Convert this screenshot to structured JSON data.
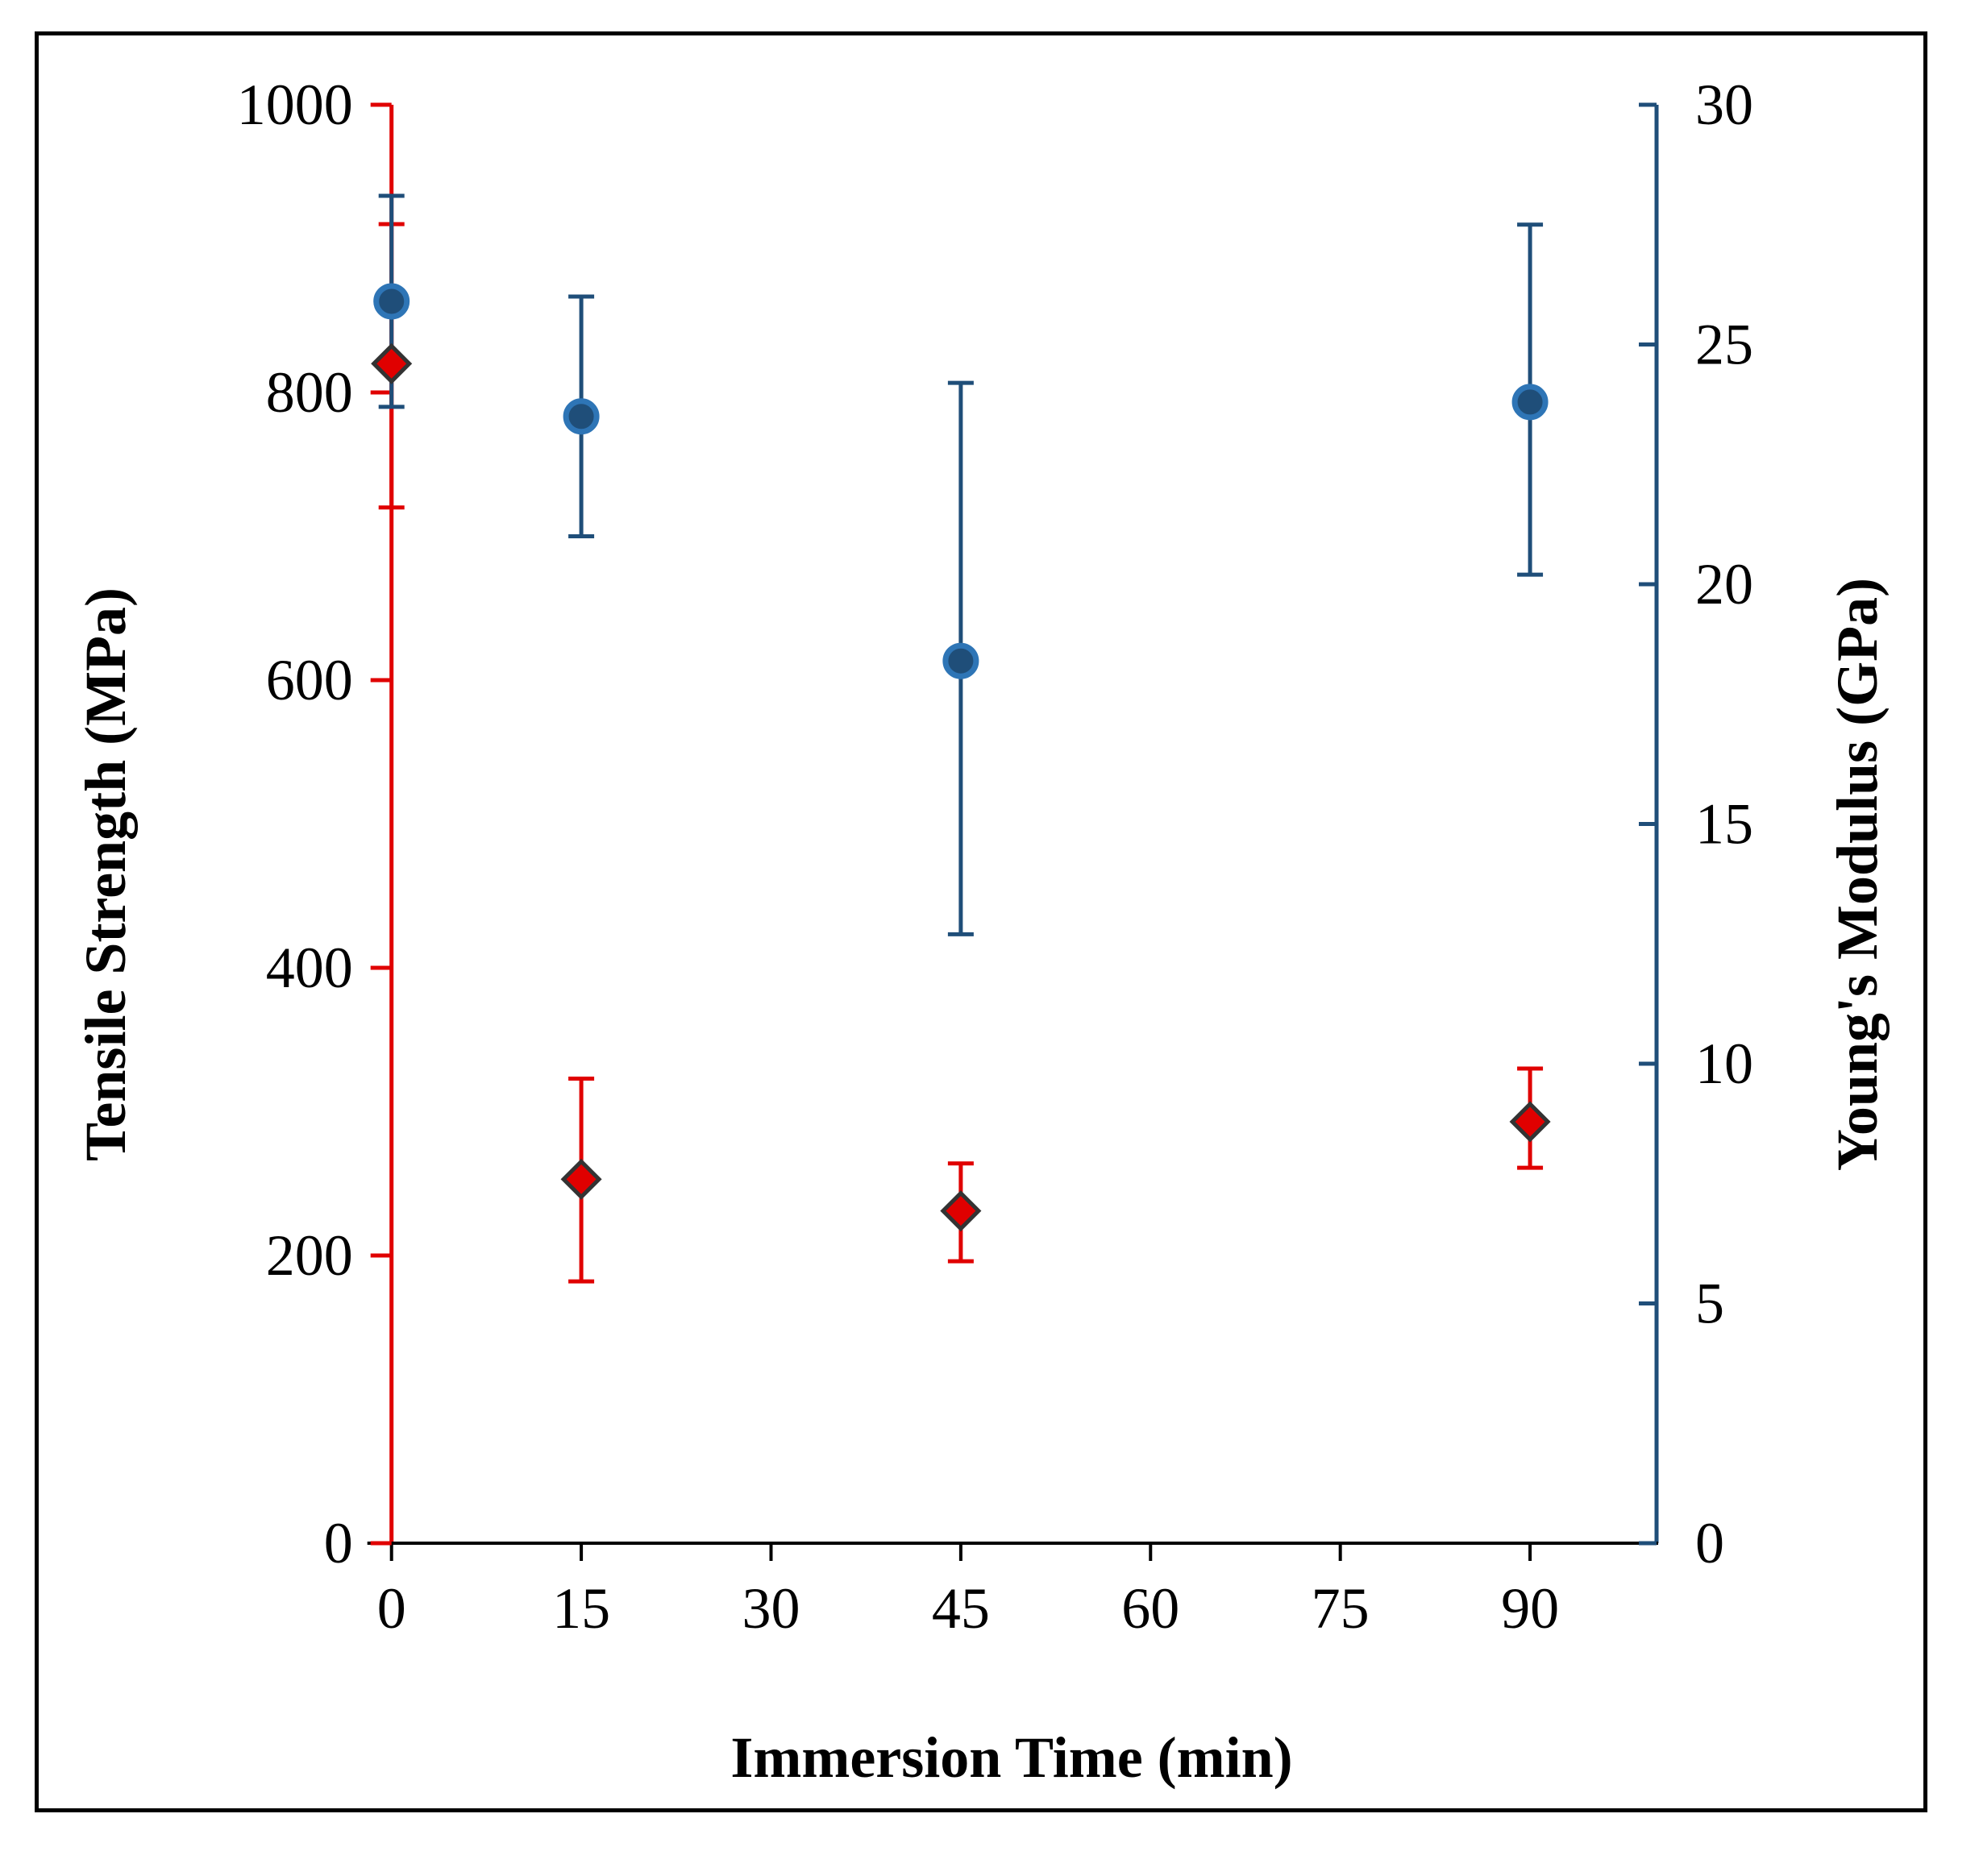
{
  "chart_data": {
    "type": "scatter",
    "title": "",
    "xlabel": "Immersion Time (min)",
    "ylabel": "Tensile Strength (MPa)",
    "y2label": "Young's Modulus (GPa)",
    "xlim": [
      -1,
      100
    ],
    "ylim": [
      0,
      1000
    ],
    "y2lim": [
      0,
      30
    ],
    "xticks": [
      0,
      15,
      30,
      45,
      60,
      75,
      90
    ],
    "yticks": [
      0,
      200,
      400,
      600,
      800,
      1000
    ],
    "y2ticks": [
      0,
      5,
      10,
      15,
      20,
      25,
      30
    ],
    "grid": false,
    "legend": "none",
    "colors": {
      "tensile_axis": "#e00000",
      "modulus_axis": "#1f4e79",
      "tensile_marker": "#e00000",
      "modulus_marker": "#1f4e79",
      "modulus_marker_edge": "#2e75b6",
      "tensile_marker_edge": "#333333"
    },
    "series": [
      {
        "name": "Tensile Strength",
        "axis": "left",
        "marker": "diamond",
        "x": [
          0,
          15,
          45,
          90
        ],
        "values": [
          820,
          253,
          231,
          293
        ],
        "err_low": [
          720,
          182,
          196,
          261
        ],
        "err_high": [
          917,
          323,
          264,
          330
        ]
      },
      {
        "name": "Young's Modulus",
        "axis": "right",
        "marker": "circle",
        "x": [
          0,
          15,
          45,
          90
        ],
        "values": [
          25.9,
          23.5,
          18.4,
          23.8
        ],
        "err_low": [
          23.7,
          21.0,
          12.7,
          20.2
        ],
        "err_high": [
          28.1,
          26.0,
          24.2,
          27.5
        ]
      }
    ]
  }
}
